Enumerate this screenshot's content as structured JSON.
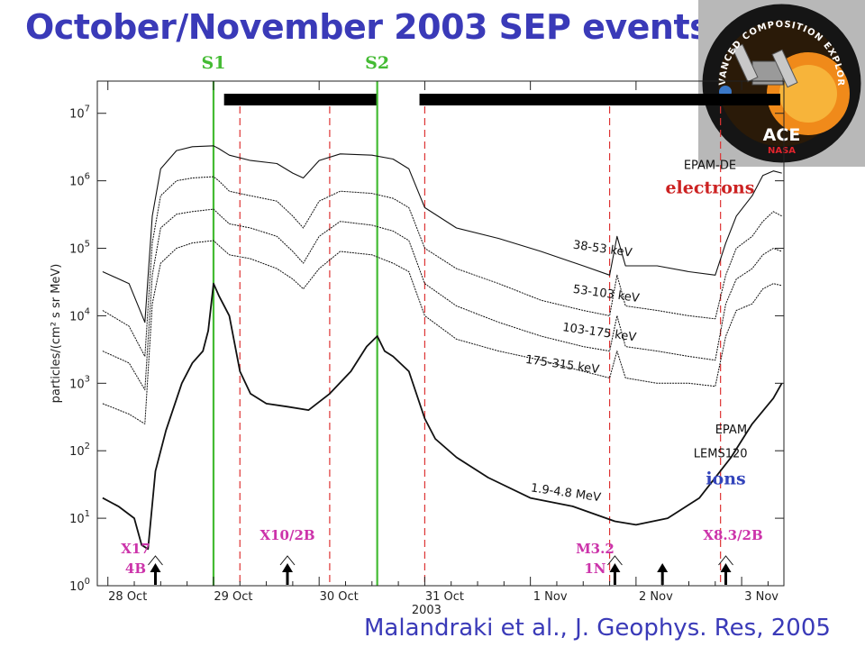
{
  "slide": {
    "title": "October/November 2003 SEP events",
    "citation": "Malandraki et al., J. Geophys. Res, 2005"
  },
  "logo": {
    "ring_text": "ADVANCED COMPOSITION EXPLORER",
    "name": "ACE",
    "agency": "NASA",
    "colors": {
      "ring": "#111111",
      "sun": "#f08a1a",
      "text": "#ffffff",
      "agency": "#e0242c"
    }
  },
  "chart_data": {
    "type": "line",
    "xlabel": "2003",
    "ylabel": "particles/(cm² s sr MeV)",
    "yscale": "log",
    "ylim": [
      1,
      30000000
    ],
    "xlim": [
      27.9,
      34.4
    ],
    "x_ticks": [
      {
        "label": "28 Oct",
        "x": 28
      },
      {
        "label": "29 Oct",
        "x": 29
      },
      {
        "label": "30 Oct",
        "x": 30
      },
      {
        "label": "31 Oct",
        "x": 31
      },
      {
        "label": "1 Nov",
        "x": 32
      },
      {
        "label": "2 Nov",
        "x": 33
      },
      {
        "label": "3 Nov",
        "x": 34
      }
    ],
    "y_ticks": [
      {
        "base": "10",
        "exp": "0",
        "v": 1
      },
      {
        "base": "10",
        "exp": "1",
        "v": 10
      },
      {
        "base": "10",
        "exp": "2",
        "v": 100
      },
      {
        "base": "10",
        "exp": "3",
        "v": 1000
      },
      {
        "base": "10",
        "exp": "4",
        "v": 10000
      },
      {
        "base": "10",
        "exp": "5",
        "v": 100000
      },
      {
        "base": "10",
        "exp": "6",
        "v": 1000000
      },
      {
        "base": "10",
        "exp": "7",
        "v": 10000000
      }
    ],
    "series": [
      {
        "name": "38-53 keV",
        "style": "electron",
        "width": 1.1,
        "x": [
          27.95,
          28.2,
          28.35,
          28.42,
          28.5,
          28.65,
          28.8,
          29.0,
          29.05,
          29.15,
          29.35,
          29.6,
          29.75,
          29.85,
          30.0,
          30.2,
          30.5,
          30.7,
          30.85,
          31.0,
          31.3,
          31.7,
          32.1,
          32.5,
          32.75,
          32.82,
          32.9,
          33.2,
          33.5,
          33.75,
          33.85,
          33.95,
          34.1,
          34.2,
          34.3,
          34.38
        ],
        "y": [
          45000,
          30000,
          8000,
          300000,
          1500000,
          2800000,
          3200000,
          3300000,
          3000000,
          2400000,
          2000000,
          1800000,
          1300000,
          1100000,
          2000000,
          2500000,
          2400000,
          2100000,
          1500000,
          400000,
          200000,
          140000,
          90000,
          55000,
          40000,
          150000,
          55000,
          55000,
          45000,
          40000,
          120000,
          300000,
          600000,
          1200000,
          1400000,
          1300000
        ]
      },
      {
        "name": "53-103 keV",
        "style": "electron",
        "width": 1.0,
        "x": [
          27.95,
          28.2,
          28.35,
          28.42,
          28.5,
          28.65,
          28.8,
          29.0,
          29.05,
          29.15,
          29.35,
          29.6,
          29.75,
          29.85,
          30.0,
          30.2,
          30.5,
          30.7,
          30.85,
          31.0,
          31.3,
          31.7,
          32.1,
          32.5,
          32.75,
          32.82,
          32.9,
          33.2,
          33.5,
          33.75,
          33.85,
          33.95,
          34.1,
          34.2,
          34.3,
          34.38
        ],
        "y": [
          12000,
          7000,
          2500,
          120000,
          600000,
          1000000,
          1100000,
          1150000,
          1000000,
          700000,
          600000,
          500000,
          300000,
          200000,
          500000,
          700000,
          650000,
          550000,
          400000,
          100000,
          50000,
          30000,
          17000,
          12000,
          10000,
          40000,
          14000,
          12000,
          10000,
          9000,
          40000,
          100000,
          150000,
          250000,
          350000,
          300000
        ]
      },
      {
        "name": "103-175 keV",
        "style": "electron",
        "width": 1.0,
        "x": [
          27.95,
          28.2,
          28.35,
          28.42,
          28.5,
          28.65,
          28.8,
          29.0,
          29.05,
          29.15,
          29.35,
          29.6,
          29.75,
          29.85,
          30.0,
          30.2,
          30.5,
          30.7,
          30.85,
          31.0,
          31.3,
          31.7,
          32.1,
          32.5,
          32.75,
          32.82,
          32.9,
          33.2,
          33.5,
          33.75,
          33.85,
          33.95,
          34.1,
          34.2,
          34.3,
          34.38
        ],
        "y": [
          3000,
          2000,
          800,
          40000,
          200000,
          320000,
          350000,
          380000,
          320000,
          230000,
          200000,
          150000,
          90000,
          60000,
          150000,
          250000,
          220000,
          180000,
          130000,
          30000,
          14000,
          8000,
          5000,
          3500,
          3000,
          10000,
          3500,
          3000,
          2500,
          2200,
          15000,
          35000,
          50000,
          80000,
          100000,
          90000
        ]
      },
      {
        "name": "175-315 keV",
        "style": "electron",
        "width": 1.0,
        "x": [
          27.95,
          28.2,
          28.35,
          28.42,
          28.5,
          28.65,
          28.8,
          29.0,
          29.05,
          29.15,
          29.35,
          29.6,
          29.75,
          29.85,
          30.0,
          30.2,
          30.5,
          30.7,
          30.85,
          31.0,
          31.3,
          31.7,
          32.1,
          32.5,
          32.75,
          32.82,
          32.9,
          33.2,
          33.5,
          33.75,
          33.85,
          33.95,
          34.1,
          34.2,
          34.3,
          34.38
        ],
        "y": [
          500,
          350,
          250,
          15000,
          60000,
          100000,
          120000,
          130000,
          110000,
          80000,
          70000,
          50000,
          35000,
          25000,
          50000,
          90000,
          80000,
          60000,
          45000,
          10000,
          4500,
          3000,
          2200,
          1500,
          1200,
          3000,
          1200,
          1000,
          1000,
          900,
          5000,
          12000,
          15000,
          25000,
          30000,
          28000
        ]
      },
      {
        "name": "1.9-4.8 MeV",
        "style": "ion",
        "width": 1.8,
        "x": [
          27.95,
          28.1,
          28.25,
          28.32,
          28.38,
          28.45,
          28.55,
          28.7,
          28.8,
          28.9,
          28.95,
          29.0,
          29.05,
          29.15,
          29.25,
          29.35,
          29.5,
          29.7,
          29.9,
          30.1,
          30.3,
          30.45,
          30.55,
          30.62,
          30.7,
          30.85,
          31.0,
          31.1,
          31.3,
          31.6,
          32.0,
          32.4,
          32.8,
          33.0,
          33.3,
          33.6,
          33.9,
          34.1,
          34.3,
          34.38
        ],
        "y": [
          20,
          15,
          10,
          4,
          3.5,
          50,
          200,
          1000,
          2000,
          3000,
          6000,
          30000,
          20000,
          10000,
          1500,
          700,
          500,
          450,
          400,
          700,
          1500,
          3500,
          5000,
          3000,
          2500,
          1500,
          300,
          150,
          80,
          40,
          20,
          15,
          9,
          8,
          10,
          20,
          80,
          250,
          600,
          1000
        ]
      }
    ],
    "curve_labels": [
      {
        "text": "38-53 keV",
        "x": 32.4,
        "y": 100000
      },
      {
        "text": "53-103 keV",
        "x": 32.4,
        "y": 22000
      },
      {
        "text": "103-175 keV",
        "x": 32.3,
        "y": 6000
      },
      {
        "text": "175-315 keV",
        "x": 31.95,
        "y": 2000
      },
      {
        "text": "1.9-4.8 MeV",
        "x": 32.0,
        "y": 25
      }
    ],
    "annotations": [
      {
        "text": "EPAM-DE",
        "x": 33.7,
        "y": 1500000,
        "color": "#111111",
        "font": "sans",
        "size": 13
      },
      {
        "text": "electrons",
        "x": 33.7,
        "y": 650000,
        "color": "#cc2222",
        "font": "serif",
        "size": 19,
        "bold": true
      },
      {
        "text": "EPAM",
        "x": 33.9,
        "y": 180000,
        "color": "#111111",
        "font": "sans",
        "size": 13,
        "hold_y": 175
      },
      {
        "text": "EPAM",
        "x": 33.9,
        "y": 180,
        "color": "#111111",
        "font": "sans",
        "size": 13
      },
      {
        "text": "LEMS120",
        "x": 33.8,
        "y": 80,
        "color": "#111111",
        "font": "sans",
        "size": 13
      },
      {
        "text": "ions",
        "x": 33.85,
        "y": 32,
        "color": "#3344bb",
        "font": "serif",
        "size": 19,
        "bold": true
      }
    ],
    "shocks": [
      {
        "label": "S1",
        "x": 29.0,
        "color": "#44bb33"
      },
      {
        "label": "S2",
        "x": 30.55,
        "color": "#44bb33"
      }
    ],
    "icme_boundaries": [
      29.25,
      30.1,
      31.0,
      32.75,
      33.8
    ],
    "bars": [
      [
        29.1,
        30.55
      ],
      [
        30.95,
        34.4
      ]
    ],
    "flares": [
      {
        "label": "X17",
        "label2": "4B",
        "x": 28.45
      },
      {
        "label": "X10/2B",
        "label2": "",
        "x": 29.7
      },
      {
        "label": "M3.2",
        "label2": "1N",
        "x": 32.8
      },
      {
        "label": "X8.3/2B",
        "label2": "",
        "x": 33.85
      }
    ],
    "extra_arrows": [
      33.25
    ],
    "grid": false
  }
}
